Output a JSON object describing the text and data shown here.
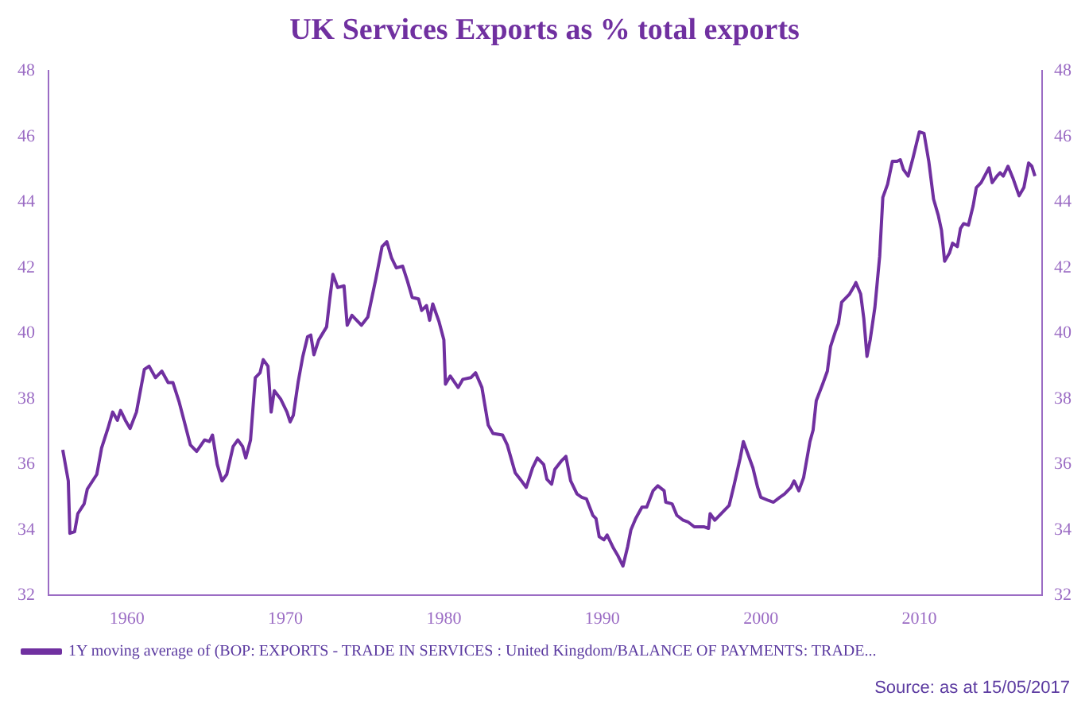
{
  "chart_data": {
    "type": "line",
    "title": "UK Services Exports as % total exports",
    "xlim": [
      1955,
      2017.7
    ],
    "xticks": [
      1960,
      1970,
      1980,
      1990,
      2000,
      2010
    ],
    "ylim": [
      32,
      48
    ],
    "yticks": [
      32,
      34,
      36,
      38,
      40,
      42,
      44,
      46,
      48
    ],
    "y2lim": [
      32,
      48
    ],
    "y2ticks": [
      32,
      34,
      36,
      38,
      40,
      42,
      44,
      46,
      48
    ],
    "grid": false,
    "legend": "bottom left",
    "marker": "none",
    "line_style": "solid",
    "annotations": [
      "Source: as at 15/05/2017"
    ],
    "series": [
      {
        "name": "1Y moving average of (BOP: EXPORTS - TRADE IN SERVICES : United Kingdom/BALANCE OF PAYMENTS: TRADE...",
        "color": "#7030a0",
        "x": [
          1955.95,
          1956.3,
          1956.4,
          1956.7,
          1956.9,
          1957.3,
          1957.5,
          1958.1,
          1958.4,
          1958.8,
          1959.1,
          1959.4,
          1959.6,
          1959.9,
          1960.2,
          1960.6,
          1961.1,
          1961.4,
          1961.8,
          1962.2,
          1962.6,
          1962.9,
          1963.3,
          1963.6,
          1964.0,
          1964.4,
          1964.9,
          1965.2,
          1965.4,
          1965.7,
          1966.0,
          1966.3,
          1966.7,
          1967.0,
          1967.3,
          1967.5,
          1967.8,
          1968.1,
          1968.4,
          1968.6,
          1968.9,
          1969.1,
          1969.3,
          1969.7,
          1970.1,
          1970.3,
          1970.5,
          1970.8,
          1971.1,
          1971.4,
          1971.6,
          1971.8,
          1972.1,
          1972.6,
          1972.8,
          1973.0,
          1973.3,
          1973.7,
          1973.9,
          1974.2,
          1974.5,
          1974.8,
          1975.2,
          1975.7,
          1976.1,
          1976.4,
          1976.7,
          1977.0,
          1977.4,
          1977.7,
          1978.0,
          1978.4,
          1978.6,
          1978.9,
          1979.1,
          1979.3,
          1979.7,
          1980.0,
          1980.1,
          1980.4,
          1980.9,
          1981.2,
          1981.7,
          1982.0,
          1982.4,
          1982.8,
          1983.1,
          1983.7,
          1984.0,
          1984.5,
          1984.9,
          1985.2,
          1985.6,
          1985.9,
          1986.3,
          1986.5,
          1986.8,
          1987.0,
          1987.4,
          1987.7,
          1988.0,
          1988.4,
          1988.7,
          1989.0,
          1989.4,
          1989.6,
          1989.8,
          1990.1,
          1990.3,
          1990.7,
          1991.0,
          1991.3,
          1991.6,
          1991.8,
          1992.1,
          1992.5,
          1992.8,
          1993.2,
          1993.5,
          1993.9,
          1994.0,
          1994.4,
          1994.7,
          1995.1,
          1995.4,
          1995.8,
          1996.1,
          1996.4,
          1996.7,
          1996.8,
          1997.1,
          1997.6,
          1998.0,
          1998.3,
          1998.7,
          1998.9,
          1999.2,
          1999.5,
          1999.8,
          2000.0,
          2000.5,
          2000.8,
          2001.2,
          2001.5,
          2001.9,
          2002.1,
          2002.4,
          2002.7,
          2003.1,
          2003.3,
          2003.5,
          2003.9,
          2004.2,
          2004.4,
          2004.7,
          2004.9,
          2005.1,
          2005.6,
          2005.9,
          2006.0,
          2006.3,
          2006.5,
          2006.7,
          2006.9,
          2007.2,
          2007.5,
          2007.7,
          2008.0,
          2008.3,
          2008.6,
          2008.8,
          2009.0,
          2009.3,
          2009.6,
          2010.0,
          2010.3,
          2010.6,
          2010.9,
          2011.2,
          2011.4,
          2011.6,
          2011.9,
          2012.1,
          2012.4,
          2012.6,
          2012.8,
          2013.1,
          2013.4,
          2013.6,
          2013.9,
          2014.4,
          2014.6,
          2014.9,
          2015.1,
          2015.3,
          2015.6,
          2015.9,
          2016.3,
          2016.6,
          2016.9,
          2017.1,
          2017.3
        ],
        "values": [
          36.45,
          35.5,
          33.9,
          33.95,
          34.5,
          34.8,
          35.25,
          35.7,
          36.5,
          37.1,
          37.6,
          37.35,
          37.65,
          37.35,
          37.1,
          37.6,
          38.9,
          39.0,
          38.65,
          38.85,
          38.5,
          38.5,
          37.9,
          37.35,
          36.6,
          36.4,
          36.75,
          36.7,
          36.9,
          36.0,
          35.5,
          35.7,
          36.55,
          36.75,
          36.55,
          36.2,
          36.75,
          38.65,
          38.8,
          39.2,
          39.0,
          37.6,
          38.25,
          38.0,
          37.6,
          37.3,
          37.5,
          38.5,
          39.3,
          39.9,
          39.95,
          39.35,
          39.8,
          40.2,
          41.05,
          41.8,
          41.4,
          41.45,
          40.25,
          40.55,
          40.4,
          40.25,
          40.5,
          41.65,
          42.65,
          42.8,
          42.3,
          42.0,
          42.05,
          41.6,
          41.1,
          41.05,
          40.7,
          40.85,
          40.4,
          40.9,
          40.35,
          39.8,
          38.45,
          38.7,
          38.35,
          38.6,
          38.65,
          38.8,
          38.35,
          37.2,
          36.95,
          36.9,
          36.6,
          35.75,
          35.5,
          35.3,
          35.9,
          36.2,
          36.0,
          35.55,
          35.4,
          35.85,
          36.1,
          36.25,
          35.5,
          35.1,
          35.0,
          34.95,
          34.45,
          34.35,
          33.8,
          33.7,
          33.85,
          33.45,
          33.2,
          32.9,
          33.5,
          34.0,
          34.35,
          34.7,
          34.7,
          35.2,
          35.35,
          35.2,
          34.85,
          34.8,
          34.45,
          34.3,
          34.25,
          34.1,
          34.1,
          34.1,
          34.05,
          34.5,
          34.3,
          34.55,
          34.75,
          35.35,
          36.2,
          36.7,
          36.3,
          35.9,
          35.3,
          35.0,
          34.9,
          34.85,
          35.0,
          35.1,
          35.3,
          35.5,
          35.2,
          35.6,
          36.7,
          37.05,
          37.95,
          38.45,
          38.85,
          39.6,
          40.05,
          40.3,
          40.95,
          41.2,
          41.45,
          41.55,
          41.2,
          40.45,
          39.3,
          39.8,
          40.8,
          42.35,
          44.15,
          44.55,
          45.25,
          45.25,
          45.3,
          45.0,
          44.8,
          45.35,
          46.15,
          46.1,
          45.25,
          44.1,
          43.6,
          43.15,
          42.2,
          42.45,
          42.75,
          42.65,
          43.2,
          43.35,
          43.3,
          43.9,
          44.45,
          44.6,
          45.05,
          44.6,
          44.8,
          44.9,
          44.8,
          45.1,
          44.75,
          44.2,
          44.45,
          45.2,
          45.1,
          44.8
        ]
      }
    ]
  }
}
